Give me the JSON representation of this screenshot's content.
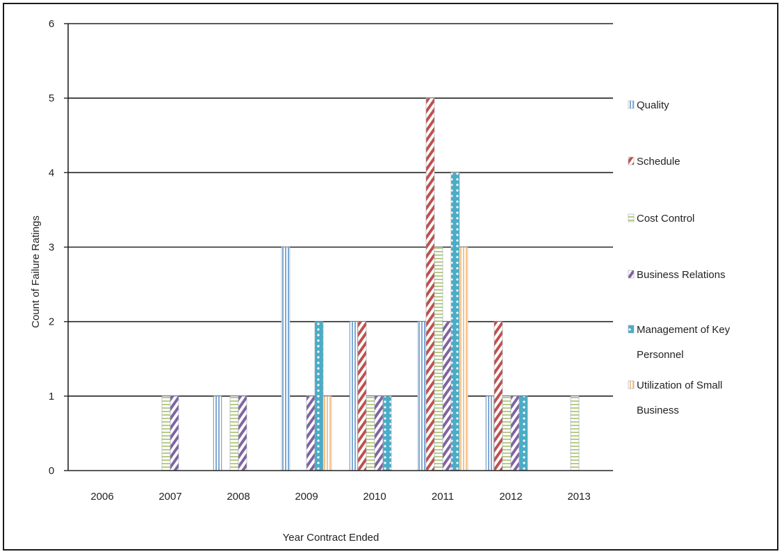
{
  "chart_data": {
    "type": "bar",
    "title": "",
    "xlabel": "Year Contract Ended",
    "ylabel": "Count of Failure Ratings",
    "ylim": [
      0,
      6
    ],
    "yticks": [
      0,
      1,
      2,
      3,
      4,
      5,
      6
    ],
    "grid": true,
    "legend_position": "right",
    "categories": [
      "2006",
      "2007",
      "2008",
      "2009",
      "2010",
      "2011",
      "2012",
      "2013"
    ],
    "series": [
      {
        "name": "Quality",
        "color": "#7fa9d6",
        "pattern": "vertical-lines",
        "values": [
          0,
          0,
          1,
          3,
          2,
          2,
          1,
          0
        ]
      },
      {
        "name": "Schedule",
        "color": "#c0504d",
        "pattern": "diagonal-stripes",
        "values": [
          0,
          0,
          0,
          0,
          2,
          5,
          2,
          0
        ]
      },
      {
        "name": "Cost Control",
        "color": "#c6d9a0",
        "pattern": "horizontal-lines",
        "values": [
          0,
          1,
          1,
          0,
          1,
          3,
          1,
          1
        ]
      },
      {
        "name": "Business Relations",
        "color": "#8064a2",
        "pattern": "diagonal-stripes",
        "values": [
          0,
          1,
          1,
          1,
          1,
          2,
          1,
          0
        ]
      },
      {
        "name": "Management of Key Personnel",
        "color": "#4bacc6",
        "pattern": "dotted",
        "values": [
          0,
          0,
          0,
          2,
          1,
          4,
          1,
          0
        ]
      },
      {
        "name": "Utilization of Small Business",
        "color": "#f7c38b",
        "pattern": "vertical-lines",
        "values": [
          0,
          0,
          0,
          1,
          0,
          3,
          0,
          0
        ]
      }
    ],
    "legend_lines": [
      [
        "Quality"
      ],
      [
        "Schedule"
      ],
      [
        "Cost Control"
      ],
      [
        "Business Relations"
      ],
      [
        "Management of Key",
        "Personnel"
      ],
      [
        "Utilization of Small",
        "Business"
      ]
    ]
  }
}
